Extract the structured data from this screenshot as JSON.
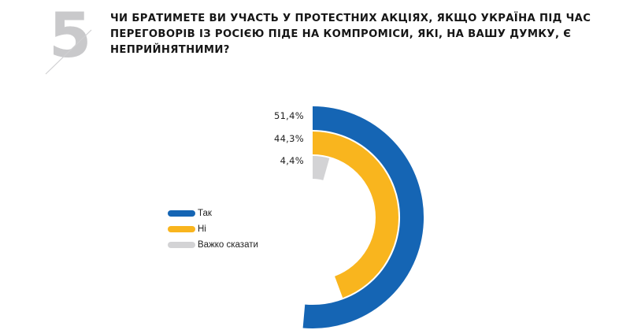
{
  "header": {
    "question_number": "5",
    "title": "ЧИ БРАТИМЕТЕ ВИ УЧАСТЬ У ПРОТЕСТНИХ АКЦІЯХ, ЯКЩО УКРАЇНА ПІД ЧАС ПЕРЕГОВОРІВ ІЗ РОСІЄЮ ПІДЕ НА КОМПРОМІСИ, ЯКІ, НА ВАШУ ДУМКУ, Є НЕПРИЙНЯТНИМИ?"
  },
  "colors": {
    "tak": "#1565B4",
    "ni": "#F9B51E",
    "vazhko": "#D3D3D5",
    "number_grey": "#C9C9CB"
  },
  "labels": {
    "tak_pct": "51,4%",
    "ni_pct": "44,3%",
    "vazhko_pct": "4,4%"
  },
  "legend": {
    "items": [
      {
        "label": "Так",
        "color": "#1565B4"
      },
      {
        "label": "Ні",
        "color": "#F9B51E"
      },
      {
        "label": "Важко сказати",
        "color": "#D3D3D5"
      }
    ]
  },
  "chart_data": {
    "type": "pie",
    "subtype": "radial-bar (concentric arcs)",
    "title": "ЧИ БРАТИМЕТЕ ВИ УЧАСТЬ У ПРОТЕСТНИХ АКЦІЯХ, ЯКЩО УКРАЇНА ПІД ЧАС ПЕРЕГОВОРІВ ІЗ РОСІЄЮ ПІДЕ НА КОМПРОМІСИ, ЯКІ, НА ВАШУ ДУМКУ, Є НЕПРИЙНЯТНИМИ?",
    "categories": [
      "Так",
      "Ні",
      "Важко сказати"
    ],
    "values": [
      51.4,
      44.3,
      4.4
    ],
    "value_labels": [
      "51,4%",
      "44,3%",
      "4,4%"
    ],
    "unit": "%",
    "colors": [
      "#1565B4",
      "#F9B51E",
      "#D3D3D5"
    ],
    "legend_position": "left",
    "full_scale": 100
  }
}
